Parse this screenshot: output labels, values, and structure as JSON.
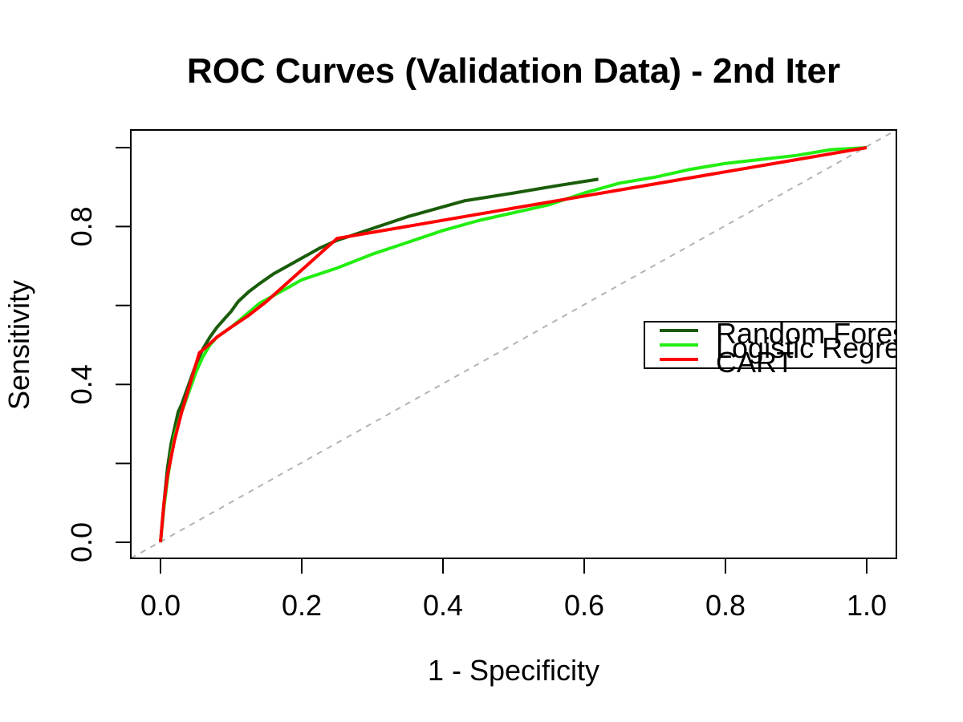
{
  "chart_data": {
    "type": "line",
    "title": "ROC Curves (Validation Data) - 2nd Iter",
    "xlabel": "1 - Specificity",
    "ylabel": "Sensitivity",
    "xlim": [
      0.0,
      1.0
    ],
    "ylim": [
      0.0,
      1.0
    ],
    "xticks": [
      0.0,
      0.2,
      0.4,
      0.6,
      0.8,
      1.0
    ],
    "xtick_labels": [
      "0.0",
      "0.2",
      "0.4",
      "0.6",
      "0.8",
      "1.0"
    ],
    "yticks": [
      0.0,
      0.2,
      0.4,
      0.6,
      0.8,
      1.0
    ],
    "ytick_labels": [
      "0.0",
      "",
      "0.4",
      "",
      "0.8",
      ""
    ],
    "grid": false,
    "legend_position": "right",
    "reference_line": {
      "x": [
        0,
        1
      ],
      "y": [
        0,
        1
      ],
      "color": "#b3b3b3",
      "style": "dashed"
    },
    "series": [
      {
        "name": "Random Forest",
        "color": "#1a5c0a",
        "x": [
          0.0,
          0.003,
          0.006,
          0.01,
          0.015,
          0.02,
          0.025,
          0.03,
          0.04,
          0.05,
          0.06,
          0.07,
          0.08,
          0.09,
          0.1,
          0.11,
          0.125,
          0.14,
          0.16,
          0.18,
          0.2,
          0.225,
          0.25,
          0.3,
          0.35,
          0.4,
          0.43,
          0.5,
          0.56,
          0.62
        ],
        "y": [
          0.0,
          0.06,
          0.12,
          0.19,
          0.25,
          0.29,
          0.33,
          0.35,
          0.4,
          0.45,
          0.49,
          0.52,
          0.545,
          0.565,
          0.585,
          0.61,
          0.635,
          0.655,
          0.68,
          0.7,
          0.72,
          0.745,
          0.765,
          0.795,
          0.825,
          0.85,
          0.865,
          0.885,
          0.903,
          0.92
        ]
      },
      {
        "name": "Logistic Regression",
        "color": "#22ee11",
        "x": [
          0.0,
          0.005,
          0.01,
          0.015,
          0.02,
          0.03,
          0.04,
          0.05,
          0.06,
          0.07,
          0.08,
          0.1,
          0.12,
          0.14,
          0.16,
          0.18,
          0.2,
          0.25,
          0.3,
          0.35,
          0.4,
          0.45,
          0.5,
          0.55,
          0.6,
          0.65,
          0.7,
          0.75,
          0.8,
          0.85,
          0.9,
          0.95,
          1.0
        ],
        "y": [
          0.0,
          0.09,
          0.16,
          0.22,
          0.27,
          0.33,
          0.38,
          0.43,
          0.47,
          0.5,
          0.52,
          0.545,
          0.575,
          0.605,
          0.625,
          0.645,
          0.665,
          0.695,
          0.73,
          0.76,
          0.79,
          0.815,
          0.835,
          0.855,
          0.885,
          0.91,
          0.925,
          0.945,
          0.96,
          0.97,
          0.98,
          0.995,
          1.0
        ]
      },
      {
        "name": "CART",
        "color": "#ff0000",
        "x": [
          0.0,
          0.005,
          0.01,
          0.02,
          0.03,
          0.04,
          0.05,
          0.055,
          0.065,
          0.08,
          0.1,
          0.125,
          0.15,
          0.2,
          0.25,
          1.0
        ],
        "y": [
          0.0,
          0.1,
          0.17,
          0.26,
          0.33,
          0.39,
          0.45,
          0.48,
          0.495,
          0.52,
          0.545,
          0.575,
          0.61,
          0.69,
          0.77,
          1.0
        ]
      }
    ]
  }
}
